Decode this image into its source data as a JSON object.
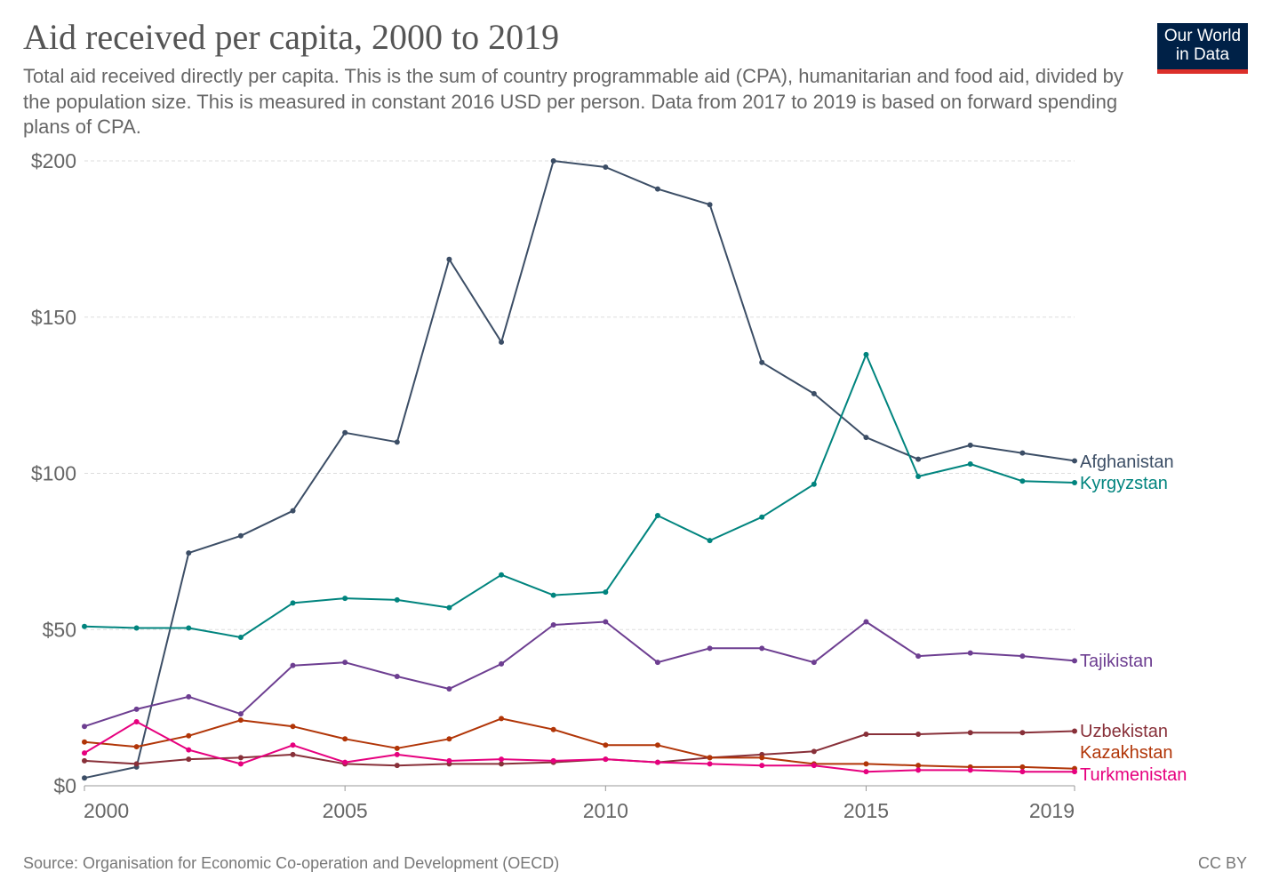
{
  "header": {
    "title": "Aid received per capita, 2000 to 2019",
    "subtitle": "Total aid received directly per capita. This is the sum of country programmable aid (CPA), humanitarian and food aid, divided by the population size. This is measured in constant 2016 USD per person. Data from 2017 to 2019 is based on forward spending plans of CPA.",
    "logo_line1": "Our World",
    "logo_line2": "in Data"
  },
  "footer": {
    "source": "Source: Organisation for Economic Co-operation and Development (OECD)",
    "license": "CC BY"
  },
  "colors": {
    "logo_bg": "#002147",
    "logo_accent": "#dc2f2a"
  },
  "chart_data": {
    "type": "line",
    "x_ticks": [
      2000,
      2005,
      2010,
      2015,
      2019
    ],
    "x_tick_labels": [
      "2000",
      "2005",
      "2010",
      "2015",
      "2019"
    ],
    "xlim": [
      2000,
      2019
    ],
    "ylim": [
      0,
      200
    ],
    "y_ticks": [
      0,
      50,
      100,
      150,
      200
    ],
    "y_tick_labels": [
      "$0",
      "$50",
      "$100",
      "$150",
      "$200"
    ],
    "grid": "horizontal dashed",
    "legend": "inline labels at right end of lines",
    "x": [
      2000,
      2001,
      2002,
      2003,
      2004,
      2005,
      2006,
      2007,
      2008,
      2009,
      2010,
      2011,
      2012,
      2013,
      2014,
      2015,
      2016,
      2017,
      2018,
      2019
    ],
    "series": [
      {
        "name": "Afghanistan",
        "color": "#3c4e66",
        "values": [
          2.5,
          6,
          74.5,
          80,
          88,
          113,
          110,
          168.5,
          142,
          200,
          198,
          191,
          186,
          135.5,
          125.5,
          111.5,
          104.5,
          109,
          106.5,
          104
        ]
      },
      {
        "name": "Kyrgyzstan",
        "color": "#00847e",
        "values": [
          51,
          50.5,
          50.5,
          47.5,
          58.5,
          60,
          59.5,
          57,
          67.5,
          61,
          62,
          86.5,
          78.5,
          86,
          96.5,
          138,
          99,
          103,
          97.5,
          97
        ]
      },
      {
        "name": "Tajikistan",
        "color": "#6d3e91",
        "values": [
          19,
          24.5,
          28.5,
          23,
          38.5,
          39.5,
          35,
          31,
          39,
          51.5,
          52.5,
          39.5,
          44,
          44,
          39.5,
          52.5,
          41.5,
          42.5,
          41.5,
          40
        ]
      },
      {
        "name": "Uzbekistan",
        "color": "#883039",
        "values": [
          8,
          7,
          8.5,
          9,
          10,
          7,
          6.5,
          7,
          7,
          7.5,
          8.5,
          7.5,
          9,
          10,
          11,
          16.5,
          16.5,
          17,
          17,
          17.5
        ]
      },
      {
        "name": "Kazakhstan",
        "color": "#b13507",
        "values": [
          14,
          12.5,
          16,
          21,
          19,
          15,
          12,
          15,
          21.5,
          18,
          13,
          13,
          9,
          9,
          7,
          7,
          6.5,
          6,
          6,
          5.5
        ]
      },
      {
        "name": "Turkmenistan",
        "color": "#e6007e",
        "values": [
          10.5,
          20.5,
          11.5,
          7,
          13,
          7.5,
          10,
          8,
          8.5,
          8,
          8.5,
          7.5,
          7,
          6.5,
          6.5,
          4.5,
          5,
          5,
          4.5,
          4.5
        ]
      }
    ]
  }
}
